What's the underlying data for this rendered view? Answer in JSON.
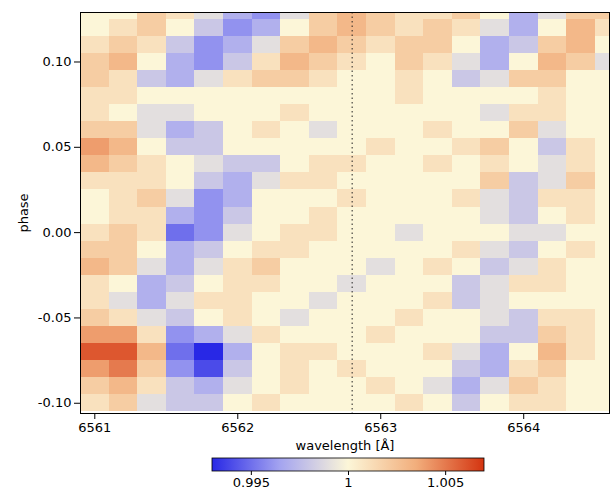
{
  "chart_data": {
    "type": "heatmap",
    "x_label": "wavelength [Å]",
    "y_label": "phase",
    "xlim": [
      6560.9,
      6564.6
    ],
    "ylim": [
      -0.106,
      0.129
    ],
    "xticks": [
      6561,
      6562,
      6563,
      6564
    ],
    "yticks": [
      {
        "value": -0.1,
        "label": "-0.10"
      },
      -0.05,
      {
        "value": 0,
        "label": "0.00"
      },
      0.05,
      {
        "value": 0.1,
        "label": "0.10"
      }
    ],
    "reference_x": 6562.8,
    "x": [
      6561.0,
      6561.2,
      6561.4,
      6561.6,
      6561.8,
      6562.0,
      6562.2,
      6562.4,
      6562.6,
      6562.8,
      6563.0,
      6563.2,
      6563.4,
      6563.6,
      6563.8,
      6564.0,
      6564.2,
      6564.4,
      6564.6
    ],
    "y": [
      -0.1,
      -0.09,
      -0.08,
      -0.07,
      -0.06,
      -0.05,
      -0.04,
      -0.03,
      -0.02,
      -0.01,
      0.0,
      0.01,
      0.02,
      0.03,
      0.04,
      0.05,
      0.06,
      0.07,
      0.08,
      0.09,
      0.1,
      0.11,
      0.12,
      0.13
    ],
    "values": [
      [
        1.001,
        1.002,
        0.999,
        0.998,
        0.998,
        1.0,
        1.001,
        1.0,
        1.0,
        1.0,
        1.0,
        1.001,
        1.0,
        0.998,
        1.0,
        1.001,
        1.001,
        1.0,
        1.0
      ],
      [
        1.002,
        1.003,
        1.001,
        0.998,
        0.997,
        0.999,
        1.0,
        1.001,
        1.0,
        1.0,
        1.001,
        1.0,
        0.999,
        0.997,
        0.999,
        1.002,
        1.001,
        1.0,
        1.0
      ],
      [
        1.004,
        1.005,
        1.002,
        0.996,
        0.994,
        0.998,
        1.0,
        1.001,
        1.0,
        1.001,
        1.0,
        1.0,
        1.0,
        0.998,
        0.997,
        1.001,
        1.002,
        1.0,
        1.0
      ],
      [
        1.006,
        1.006,
        1.003,
        0.995,
        0.993,
        0.997,
        1.0,
        1.001,
        1.001,
        1.0,
        1.0,
        1.0,
        1.001,
        0.999,
        0.997,
        1.0,
        1.003,
        1.001,
        1.0
      ],
      [
        1.004,
        1.004,
        1.001,
        0.996,
        0.997,
        0.999,
        1.001,
        1.0,
        1.0,
        1.0,
        1.001,
        1.0,
        1.0,
        1.0,
        0.998,
        0.998,
        1.002,
        1.001,
        1.0
      ],
      [
        1.002,
        1.001,
        0.999,
        0.998,
        1.0,
        1.001,
        1.0,
        0.999,
        1.0,
        1.0,
        1.0,
        1.001,
        1.0,
        1.0,
        0.999,
        0.998,
        1.001,
        1.001,
        1.0
      ],
      [
        1.001,
        0.999,
        0.997,
        0.999,
        1.001,
        1.001,
        1.0,
        1.0,
        0.999,
        1.0,
        1.0,
        1.0,
        1.001,
        0.998,
        0.999,
        1.0,
        1.0,
        1.0,
        1.0
      ],
      [
        1.001,
        1.0,
        0.997,
        0.998,
        1.0,
        1.001,
        1.001,
        1.0,
        1.0,
        0.999,
        1.0,
        1.0,
        1.0,
        0.998,
        0.999,
        1.001,
        1.001,
        1.0,
        1.0
      ],
      [
        1.003,
        1.002,
        0.999,
        0.997,
        0.999,
        1.001,
        1.002,
        1.0,
        1.0,
        1.0,
        0.999,
        1.0,
        1.001,
        1.0,
        0.998,
        0.999,
        1.001,
        1.0,
        1.0
      ],
      [
        1.002,
        1.002,
        1.0,
        0.997,
        0.998,
        1.0,
        1.001,
        1.001,
        1.0,
        1.0,
        1.0,
        1.0,
        1.0,
        1.001,
        0.999,
        0.998,
        1.0,
        1.001,
        1.0
      ],
      [
        1.001,
        1.002,
        1.001,
        0.995,
        0.996,
        0.999,
        1.0,
        1.001,
        1.001,
        1.0,
        1.0,
        0.999,
        1.0,
        1.0,
        1.0,
        0.999,
        0.999,
        1.0,
        1.0
      ],
      [
        1.0,
        1.001,
        1.001,
        0.997,
        0.996,
        0.998,
        1.0,
        1.0,
        1.001,
        1.0,
        1.0,
        1.0,
        1.0,
        1.0,
        0.999,
        0.998,
        1.0,
        1.001,
        1.0
      ],
      [
        1.0,
        1.001,
        1.002,
        0.999,
        0.996,
        0.997,
        1.0,
        1.0,
        1.0,
        1.001,
        1.0,
        1.0,
        1.0,
        1.001,
        0.999,
        0.998,
        1.001,
        1.001,
        1.0
      ],
      [
        1.001,
        1.001,
        1.001,
        1.0,
        0.998,
        0.997,
        0.999,
        1.001,
        1.001,
        1.0,
        1.0,
        1.0,
        1.0,
        1.0,
        1.002,
        0.998,
        0.999,
        1.002,
        1.0
      ],
      [
        1.003,
        1.002,
        1.001,
        1.0,
        0.999,
        0.998,
        0.998,
        1.0,
        1.001,
        1.001,
        1.0,
        1.0,
        1.001,
        1.0,
        1.001,
        1.0,
        0.999,
        1.001,
        1.0
      ],
      [
        1.004,
        1.003,
        1.0,
        0.998,
        0.998,
        1.0,
        1.0,
        1.0,
        1.0,
        1.0,
        1.001,
        1.0,
        1.0,
        1.001,
        1.002,
        1.0,
        0.998,
        1.001,
        1.0
      ],
      [
        1.002,
        1.002,
        0.999,
        0.997,
        0.998,
        1.0,
        1.001,
        1.0,
        0.999,
        1.0,
        1.0,
        1.0,
        1.001,
        1.0,
        1.0,
        1.002,
        0.999,
        1.0,
        1.0
      ],
      [
        1.001,
        1.0,
        0.999,
        0.999,
        1.0,
        1.0,
        1.0,
        1.001,
        1.0,
        1.0,
        1.0,
        1.0,
        1.0,
        1.0,
        0.999,
        1.001,
        1.001,
        1.0,
        1.0
      ],
      [
        1.001,
        1.001,
        1.0,
        1.0,
        1.0,
        1.0,
        1.0,
        1.0,
        1.0,
        1.0,
        1.0,
        1.001,
        1.0,
        1.0,
        1.0,
        1.0,
        1.001,
        1.0,
        1.0
      ],
      [
        1.002,
        1.001,
        0.998,
        0.997,
        0.999,
        1.001,
        1.002,
        1.002,
        1.001,
        1.0,
        1.0,
        1.001,
        1.0,
        0.998,
        0.999,
        1.002,
        1.002,
        1.0,
        1.0
      ],
      [
        1.002,
        1.003,
        1.0,
        0.997,
        0.996,
        0.998,
        1.001,
        1.003,
        1.002,
        1.001,
        1.0,
        1.002,
        1.001,
        0.999,
        0.997,
        1.0,
        1.003,
        1.002,
        0.999
      ],
      [
        1.001,
        1.002,
        1.001,
        0.998,
        0.996,
        0.997,
        0.999,
        1.002,
        1.003,
        1.002,
        1.001,
        1.002,
        1.002,
        1.0,
        0.997,
        0.998,
        1.002,
        1.003,
        1.0
      ],
      [
        1.0,
        1.001,
        1.002,
        1.0,
        0.998,
        0.996,
        0.997,
        1.0,
        1.002,
        1.003,
        1.002,
        1.001,
        1.002,
        1.001,
        0.999,
        0.997,
        1.0,
        1.003,
        1.001
      ],
      [
        1.0,
        1.0,
        1.002,
        1.001,
        0.999,
        0.997,
        0.996,
        0.999,
        1.002,
        1.003,
        1.002,
        1.001,
        1.001,
        1.002,
        1.0,
        0.997,
        0.999,
        1.002,
        1.002
      ]
    ],
    "colorbar": {
      "range": [
        0.993,
        1.007
      ],
      "ticks": [
        0.995,
        1,
        1.005
      ]
    }
  }
}
